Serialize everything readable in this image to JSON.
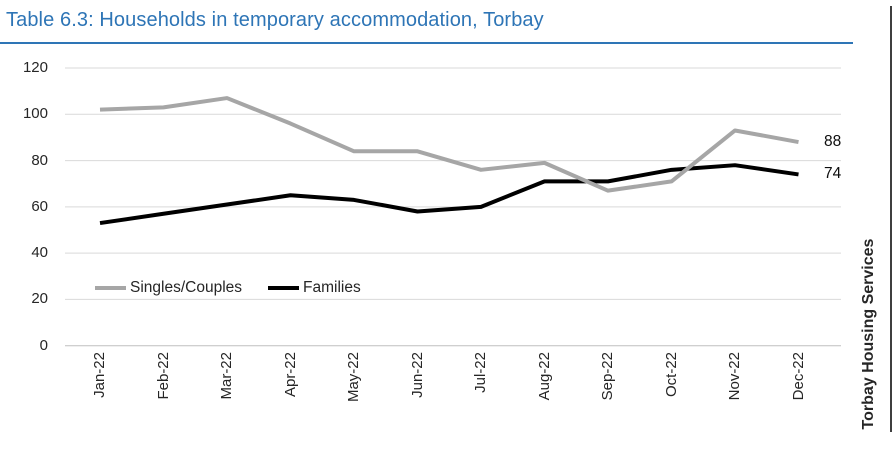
{
  "title": "Table 6.3: Households in temporary accommodation, Torbay",
  "source_label": "Torbay Housing Services",
  "colors": {
    "title": "#2E75B6",
    "title_rule": "#2E75B6",
    "singles_couples_line": "#A6A6A6",
    "families_line": "#000000",
    "gridline": "#D9D9D9",
    "axis_line": "#BFBFBF",
    "axis_text": "#262626",
    "panel_border": "#3F3F3F"
  },
  "chart_data": {
    "type": "line",
    "title": "Table 6.3: Households in temporary accommodation, Torbay",
    "categories": [
      "Jan-22",
      "Feb-22",
      "Mar-22",
      "Apr-22",
      "May-22",
      "Jun-22",
      "Jul-22",
      "Aug-22",
      "Sep-22",
      "Oct-22",
      "Nov-22",
      "Dec-22"
    ],
    "series": [
      {
        "name": "Singles/Couples",
        "color": "#A6A6A6",
        "values": [
          102,
          103,
          107,
          96,
          84,
          84,
          76,
          79,
          67,
          71,
          93,
          88
        ],
        "end_label": "88"
      },
      {
        "name": "Families",
        "color": "#000000",
        "values": [
          53,
          57,
          61,
          65,
          63,
          58,
          60,
          71,
          71,
          76,
          78,
          74
        ],
        "end_label": "74"
      }
    ],
    "y_ticks": [
      0,
      20,
      40,
      60,
      80,
      100,
      120
    ],
    "ylim": [
      0,
      120
    ],
    "grid": true,
    "legend_position": "inside bottom-left",
    "xlabel": "",
    "ylabel": "",
    "annotations": [
      "88",
      "74"
    ]
  }
}
